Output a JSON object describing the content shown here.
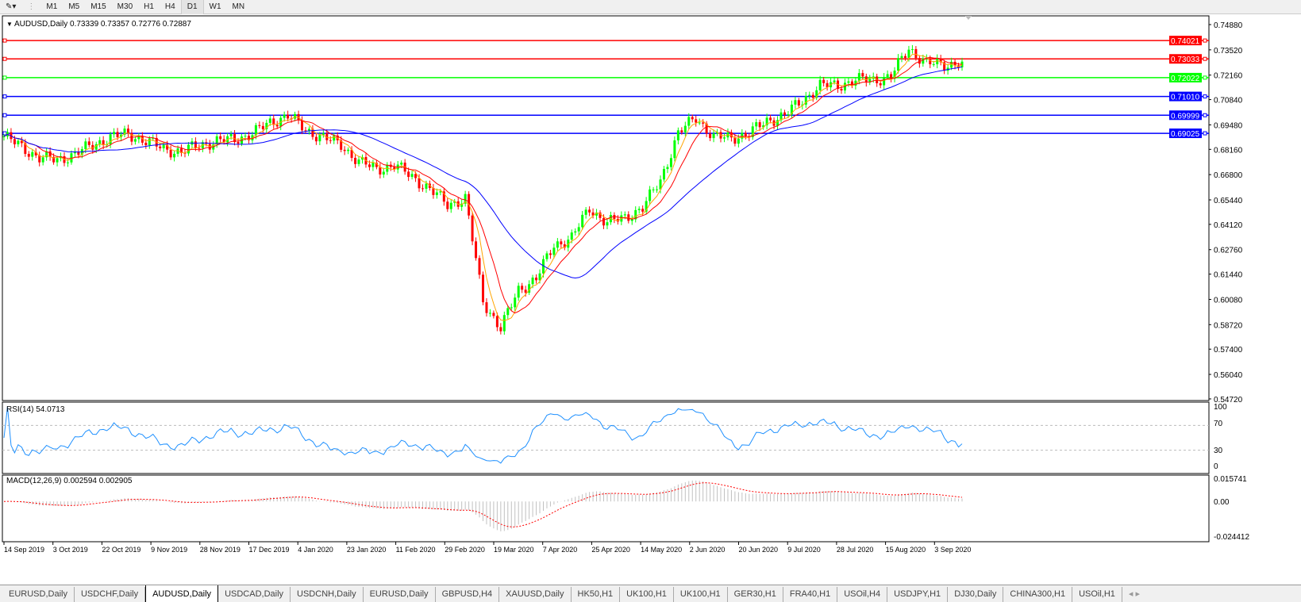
{
  "toolbar": {
    "timeframes": [
      "M1",
      "M5",
      "M15",
      "M30",
      "H1",
      "H4",
      "D1",
      "W1",
      "MN"
    ],
    "active": "D1"
  },
  "chart_header": {
    "symbol": "AUDUSD,Daily",
    "ohlc": "0.73339 0.73357 0.72776 0.72887"
  },
  "tabs": [
    "EURUSD,Daily",
    "USDCHF,Daily",
    "AUDUSD,Daily",
    "USDCAD,Daily",
    "USDCNH,Daily",
    "EURUSD,Daily",
    "GBPUSD,H4",
    "XAUUSD,Daily",
    "HK50,H1",
    "UK100,H1",
    "UK100,H1",
    "GER30,H1",
    "FRA40,H1",
    "USOil,H4",
    "USDJPY,H1",
    "DJ30,Daily",
    "CHINA300,H1",
    "USOil,H1"
  ],
  "active_tab": "AUDUSD,Daily",
  "colors": {
    "bull": "#00ff00",
    "bear": "#ff0000",
    "ma_fast": "#ffa500",
    "ma_mid": "#ff0000",
    "ma_slow": "#0000ff",
    "rsi": "#1e90ff",
    "macd_signal": "#ff0000",
    "macd_hist": "#c0c0c0"
  },
  "chart_data": {
    "type": "candlestick",
    "price_axis_labels": [
      "0.74880",
      "0.73520",
      "0.72160",
      "0.70840",
      "0.69480",
      "0.68160",
      "0.66800",
      "0.65440",
      "0.64120",
      "0.62760",
      "0.61440",
      "0.60080",
      "0.58720",
      "0.57400",
      "0.56040",
      "0.54720"
    ],
    "ylim": [
      0.5472,
      0.7488
    ],
    "date_labels": [
      "14 Sep 2019",
      "3 Oct 2019",
      "22 Oct 2019",
      "9 Nov 2019",
      "28 Nov 2019",
      "17 Dec 2019",
      "4 Jan 2020",
      "23 Jan 2020",
      "11 Feb 2020",
      "29 Feb 2020",
      "19 Mar 2020",
      "7 Apr 2020",
      "25 Apr 2020",
      "14 May 2020",
      "2 Jun 2020",
      "20 Jun 2020",
      "9 Jul 2020",
      "28 Jul 2020",
      "15 Aug 2020",
      "3 Sep 2020"
    ],
    "weekly_closes_approx": [
      0.6886,
      0.683,
      0.677,
      0.676,
      0.679,
      0.684,
      0.688,
      0.69,
      0.686,
      0.682,
      0.68,
      0.684,
      0.686,
      0.687,
      0.69,
      0.696,
      0.7,
      0.692,
      0.688,
      0.684,
      0.675,
      0.671,
      0.673,
      0.667,
      0.66,
      0.652,
      0.655,
      0.6,
      0.585,
      0.606,
      0.612,
      0.63,
      0.634,
      0.65,
      0.642,
      0.645,
      0.65,
      0.665,
      0.69,
      0.699,
      0.688,
      0.688,
      0.69,
      0.697,
      0.7,
      0.708,
      0.716,
      0.716,
      0.719,
      0.719,
      0.721,
      0.736,
      0.728,
      0.727,
      0.72887
    ],
    "hlines": [
      {
        "value": "0.74021",
        "color": "#ff0000"
      },
      {
        "value": "0.73033",
        "color": "#ff0000"
      },
      {
        "value": "0.72022",
        "color": "#00ff00"
      },
      {
        "value": "0.71010",
        "color": "#0000ff"
      },
      {
        "value": "0.69999",
        "color": "#0000ff"
      },
      {
        "value": "0.69025",
        "color": "#0000ff"
      }
    ],
    "rsi": {
      "label": "RSI(14) 54.0713",
      "axis": [
        "100",
        "70",
        "30",
        "0"
      ],
      "levels": [
        70,
        30
      ]
    },
    "macd": {
      "label": "MACD(12,26,9) 0.002594 0.002905",
      "axis": [
        "0.015741",
        "0.00",
        "-0.024412"
      ],
      "ylim": [
        -0.024412,
        0.015741
      ]
    }
  }
}
